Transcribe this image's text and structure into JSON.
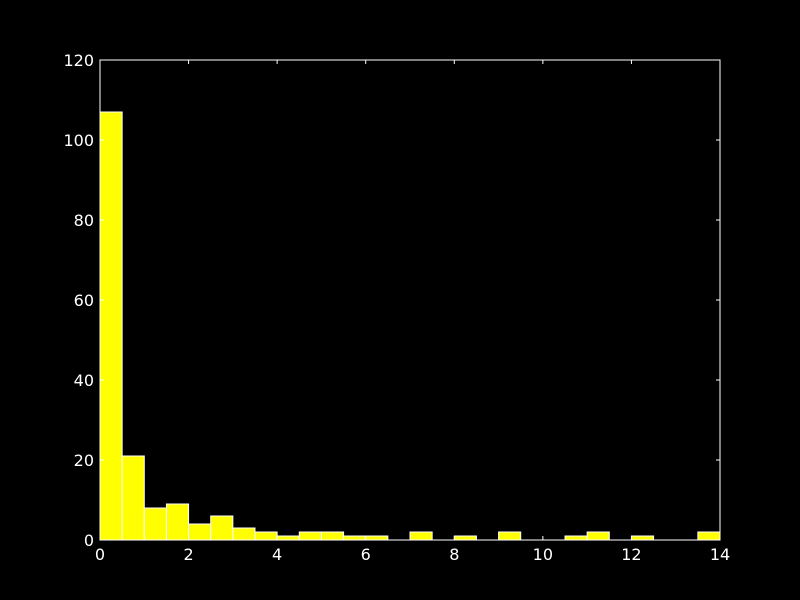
{
  "chart_data": {
    "type": "bar",
    "subtype": "histogram",
    "title": "",
    "xlabel": "",
    "ylabel": "",
    "bin_edges": [
      0,
      0.5,
      1,
      1.5,
      2,
      2.5,
      3,
      3.5,
      4,
      4.5,
      5,
      5.5,
      6,
      6.5,
      7,
      7.5,
      8,
      8.5,
      9,
      9.5,
      10,
      10.5,
      11,
      11.5,
      12,
      12.5,
      13,
      13.5,
      14
    ],
    "values": [
      107,
      21,
      8,
      9,
      4,
      6,
      3,
      2,
      1,
      2,
      2,
      1,
      1,
      0,
      2,
      0,
      1,
      0,
      2,
      0,
      0,
      1,
      2,
      0,
      1,
      0,
      0,
      2
    ],
    "xlim": [
      0,
      14
    ],
    "ylim": [
      0,
      120
    ],
    "xticks": [
      0,
      2,
      4,
      6,
      8,
      10,
      12,
      14
    ],
    "xtick_labels": [
      "0",
      "2",
      "4",
      "6",
      "8",
      "10",
      "12",
      "14"
    ],
    "yticks": [
      0,
      20,
      40,
      60,
      80,
      100,
      120
    ],
    "ytick_labels": [
      "0",
      "20",
      "40",
      "60",
      "80",
      "100",
      "120"
    ],
    "grid": false,
    "colors": {
      "bar_fill": "#ffff00",
      "bar_edge": "#ffffff",
      "axes": "#ffffff",
      "background": "#000000"
    }
  }
}
